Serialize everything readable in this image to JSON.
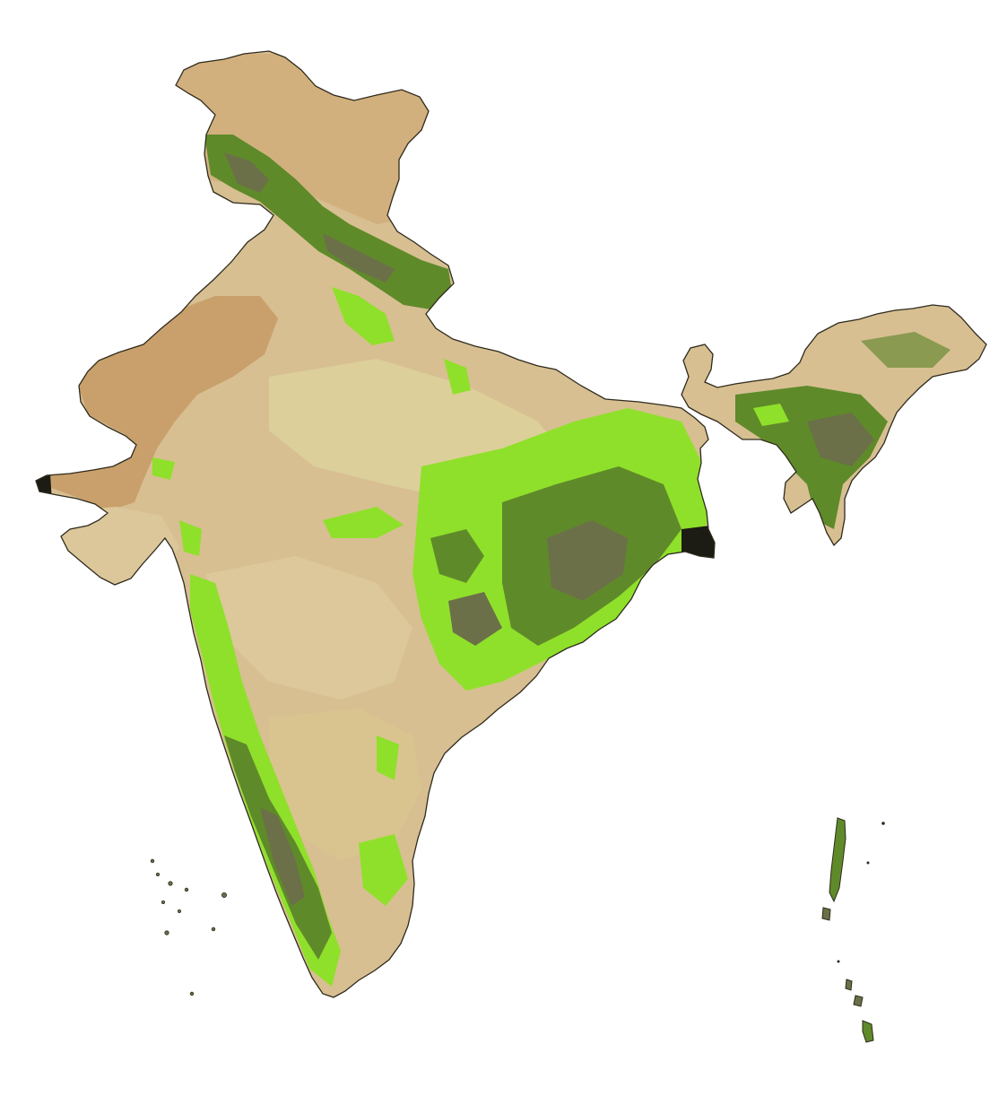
{
  "map": {
    "palette": {
      "background": "#ffffff",
      "border": "#2e2a1c",
      "desert": "#c9a06b",
      "dry_land": "#d7bf92",
      "grassland": "#dccf9a",
      "light_vegetation": "#8fe02a",
      "dense_forest": "#5f8a2a",
      "dark_forest": "#6b7048",
      "mangrove": "#1c1c14"
    }
  }
}
